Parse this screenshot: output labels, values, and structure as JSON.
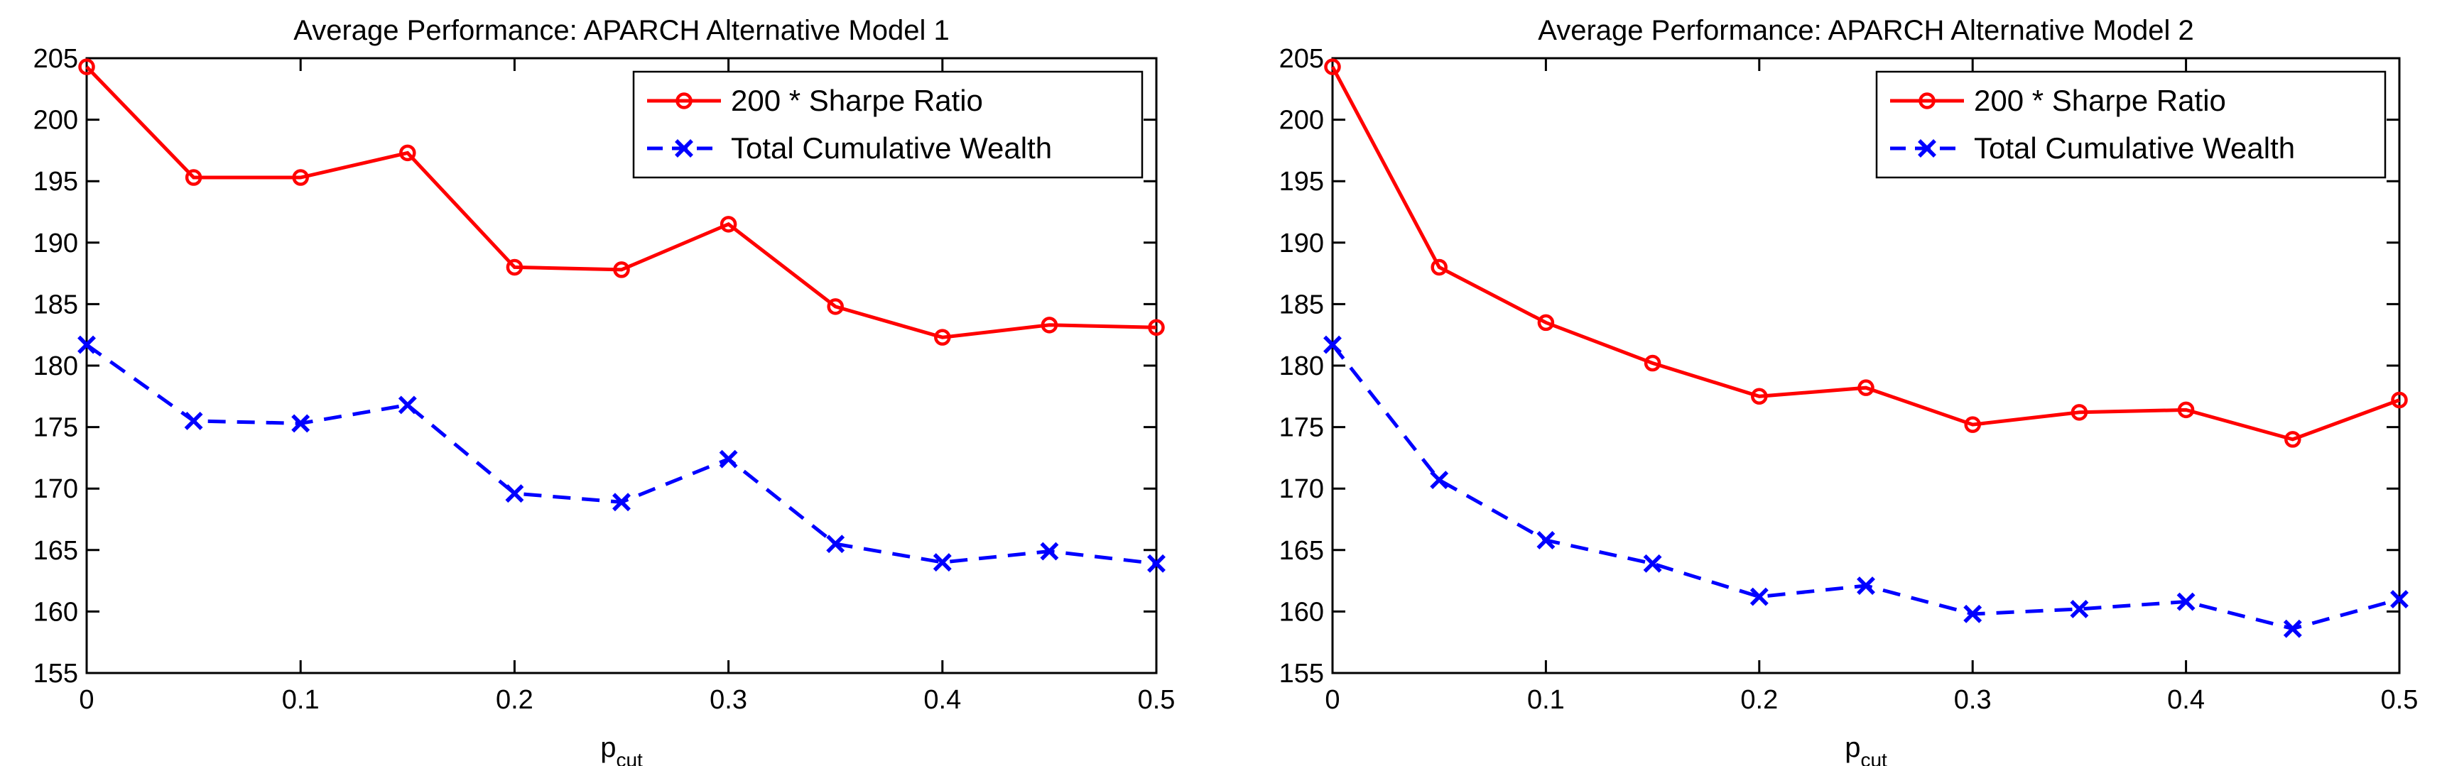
{
  "figure": {
    "background": "#ffffff",
    "axis_color": "#000000",
    "text_color": "#000000"
  },
  "chart_data": [
    {
      "type": "line",
      "title": "Average Performance: APARCH Alternative Model 1",
      "xlabel": "p_cut",
      "ylabel": "",
      "xlim": [
        0,
        0.5
      ],
      "ylim": [
        155,
        205
      ],
      "grid": false,
      "legend_position": "top-right",
      "x_tick_values": [
        0,
        0.1,
        0.2,
        0.3,
        0.4,
        0.5
      ],
      "x_tick_labels": [
        "0",
        "0.1",
        "0.2",
        "0.3",
        "0.4",
        "0.5"
      ],
      "y_tick_values": [
        155,
        160,
        165,
        170,
        175,
        180,
        185,
        190,
        195,
        200,
        205
      ],
      "y_tick_labels": [
        "155",
        "160",
        "165",
        "170",
        "175",
        "180",
        "185",
        "190",
        "195",
        "200",
        "205"
      ],
      "x": [
        0,
        0.05,
        0.1,
        0.15,
        0.2,
        0.25,
        0.3,
        0.35,
        0.4,
        0.45,
        0.5
      ],
      "series": [
        {
          "name": "200 * Sharpe Ratio",
          "color": "#ff0000",
          "style": "solid",
          "marker": "circle",
          "values": [
            204.3,
            195.3,
            195.3,
            197.3,
            188.0,
            187.8,
            191.5,
            184.8,
            182.3,
            183.3,
            183.1
          ]
        },
        {
          "name": "Total Cumulative Wealth",
          "color": "#0000ff",
          "style": "dashed",
          "marker": "x",
          "values": [
            181.7,
            175.5,
            175.3,
            176.8,
            169.6,
            168.9,
            172.4,
            165.5,
            164.0,
            164.9,
            163.9
          ]
        }
      ]
    },
    {
      "type": "line",
      "title": "Average Performance: APARCH Alternative Model 2",
      "xlabel": "p_cut",
      "ylabel": "",
      "xlim": [
        0,
        0.5
      ],
      "ylim": [
        155,
        205
      ],
      "grid": false,
      "legend_position": "top-right",
      "x_tick_values": [
        0,
        0.1,
        0.2,
        0.3,
        0.4,
        0.5
      ],
      "x_tick_labels": [
        "0",
        "0.1",
        "0.2",
        "0.3",
        "0.4",
        "0.5"
      ],
      "y_tick_values": [
        155,
        160,
        165,
        170,
        175,
        180,
        185,
        190,
        195,
        200,
        205
      ],
      "y_tick_labels": [
        "155",
        "160",
        "165",
        "170",
        "175",
        "180",
        "185",
        "190",
        "195",
        "200",
        "205"
      ],
      "x": [
        0,
        0.05,
        0.1,
        0.15,
        0.2,
        0.25,
        0.3,
        0.35,
        0.4,
        0.45,
        0.5
      ],
      "series": [
        {
          "name": "200 * Sharpe Ratio",
          "color": "#ff0000",
          "style": "solid",
          "marker": "circle",
          "values": [
            204.3,
            188.0,
            183.5,
            180.2,
            177.5,
            178.2,
            175.2,
            176.2,
            176.4,
            174.0,
            177.2
          ]
        },
        {
          "name": "Total Cumulative Wealth",
          "color": "#0000ff",
          "style": "dashed",
          "marker": "x",
          "values": [
            181.7,
            170.7,
            165.8,
            163.9,
            161.2,
            162.1,
            159.8,
            160.2,
            160.8,
            158.6,
            161.0
          ]
        }
      ]
    }
  ]
}
